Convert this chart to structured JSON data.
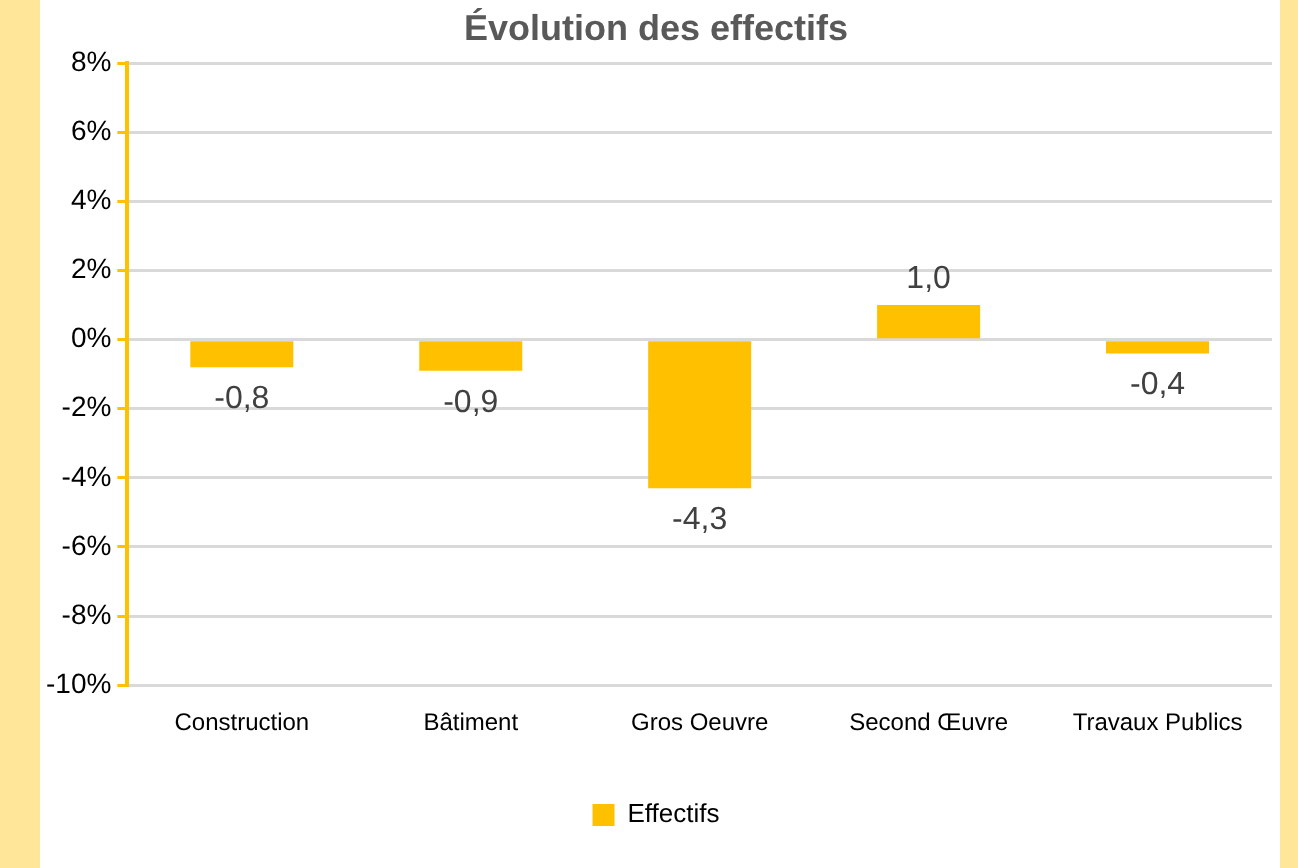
{
  "chart_data": {
    "type": "bar",
    "title": "Évolution des effectifs",
    "categories": [
      "Construction",
      "Bâtiment",
      "Gros Oeuvre",
      "Second Œuvre",
      "Travaux Publics"
    ],
    "series": [
      {
        "name": "Effectifs",
        "color": "#ffc000",
        "values": [
          -0.8,
          -0.9,
          -4.3,
          1.0,
          -0.4
        ],
        "value_labels": [
          "-0,8",
          "-0,9",
          "-4,3",
          "1,0",
          "-0,4"
        ]
      }
    ],
    "ylim": [
      -10,
      8
    ],
    "yticks": [
      {
        "value": -10,
        "label": "-10%"
      },
      {
        "value": -8,
        "label": "-8%"
      },
      {
        "value": -6,
        "label": "-6%"
      },
      {
        "value": -4,
        "label": "-4%"
      },
      {
        "value": -2,
        "label": "-2%"
      },
      {
        "value": 0,
        "label": "0%"
      },
      {
        "value": 2,
        "label": "2%"
      },
      {
        "value": 4,
        "label": "4%"
      },
      {
        "value": 6,
        "label": "6%"
      },
      {
        "value": 8,
        "label": "8%"
      }
    ],
    "grid": "y",
    "legend": "bottom"
  }
}
